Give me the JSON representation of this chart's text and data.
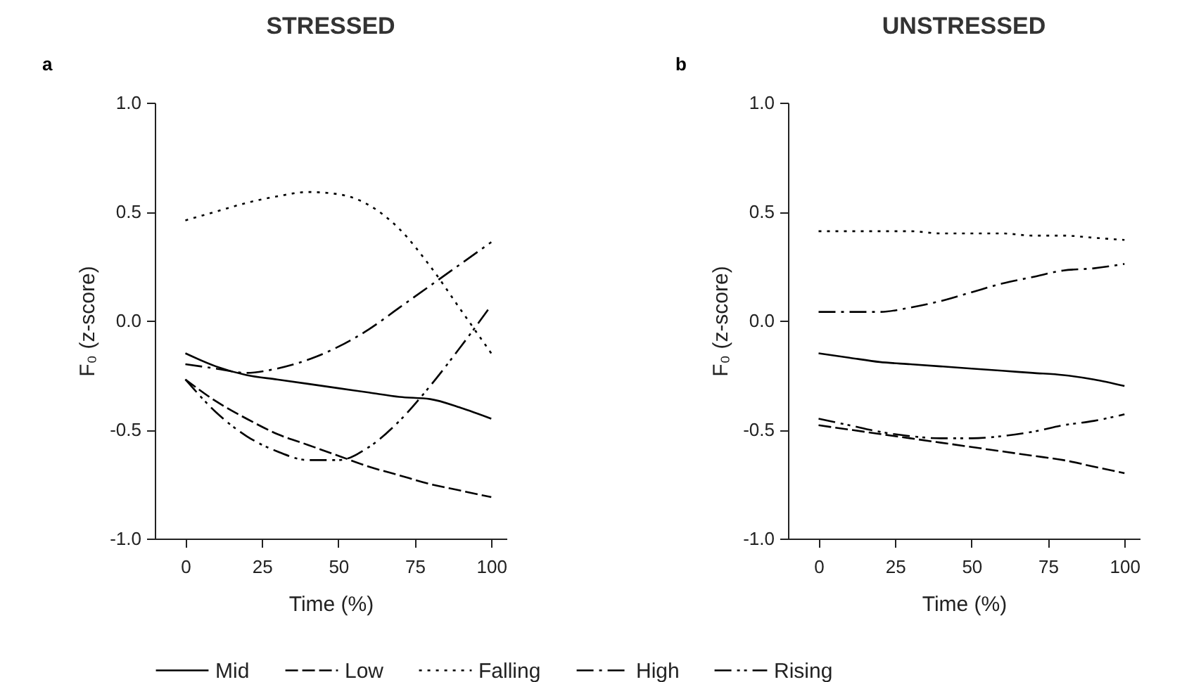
{
  "chart_data": [
    {
      "type": "line",
      "title": "STRESSED",
      "annotations": [
        "a"
      ],
      "xlabel": "Time (%)",
      "ylabel": "F₀ (z-score)",
      "x": [
        0,
        10,
        20,
        30,
        40,
        50,
        60,
        70,
        80,
        90,
        100
      ],
      "xlim": [
        -10,
        105
      ],
      "xticks": [
        0,
        25,
        50,
        75,
        100
      ],
      "ylim": [
        -1,
        1
      ],
      "yticks": [
        {
          "value": -1,
          "label": "-1.0"
        },
        {
          "value": -0.5,
          "label": "-0.5"
        },
        {
          "value": 0,
          "label": "0.0"
        },
        {
          "value": 0.5,
          "label": "0.5"
        },
        {
          "value": 1,
          "label": "1.0"
        }
      ],
      "grid": false,
      "legend": "bottom",
      "series": [
        {
          "name": "Mid",
          "color": "#000000",
          "line_style": "solid",
          "values": [
            -0.15,
            -0.21,
            -0.25,
            -0.27,
            -0.29,
            -0.31,
            -0.33,
            -0.35,
            -0.36,
            -0.4,
            -0.45
          ]
        },
        {
          "name": "Low",
          "color": "#000000",
          "line_style": "dashed",
          "values": [
            -0.27,
            -0.37,
            -0.45,
            -0.52,
            -0.57,
            -0.62,
            -0.67,
            -0.71,
            -0.75,
            -0.78,
            -0.81
          ]
        },
        {
          "name": "Falling",
          "color": "#000000",
          "line_style": "dotted",
          "values": [
            0.46,
            0.5,
            0.54,
            0.57,
            0.59,
            0.58,
            0.53,
            0.42,
            0.25,
            0.05,
            -0.15
          ]
        },
        {
          "name": "High",
          "color": "#000000",
          "line_style": "dashdot",
          "values": [
            -0.2,
            -0.22,
            -0.24,
            -0.22,
            -0.18,
            -0.12,
            -0.04,
            0.06,
            0.16,
            0.26,
            0.36
          ]
        },
        {
          "name": "Rising",
          "color": "#000000",
          "line_style": "dashdotdot",
          "values": [
            -0.27,
            -0.42,
            -0.53,
            -0.6,
            -0.64,
            -0.64,
            -0.58,
            -0.46,
            -0.3,
            -0.12,
            0.07
          ]
        }
      ]
    },
    {
      "type": "line",
      "title": "UNSTRESSED",
      "annotations": [
        "b"
      ],
      "xlabel": "Time (%)",
      "ylabel": "F₀ (z-score)",
      "x": [
        0,
        10,
        20,
        30,
        40,
        50,
        60,
        70,
        80,
        90,
        100
      ],
      "xlim": [
        -10,
        105
      ],
      "xticks": [
        0,
        25,
        50,
        75,
        100
      ],
      "ylim": [
        -1,
        1
      ],
      "yticks": [
        {
          "value": -1,
          "label": "-1.0"
        },
        {
          "value": -0.5,
          "label": "-0.5"
        },
        {
          "value": 0,
          "label": "0.0"
        },
        {
          "value": 0.5,
          "label": "0.5"
        },
        {
          "value": 1,
          "label": "1.0"
        }
      ],
      "grid": false,
      "legend": "bottom",
      "series": [
        {
          "name": "Mid",
          "color": "#000000",
          "line_style": "solid",
          "values": [
            -0.15,
            -0.17,
            -0.19,
            -0.2,
            -0.21,
            -0.22,
            -0.23,
            -0.24,
            -0.25,
            -0.27,
            -0.3
          ]
        },
        {
          "name": "Low",
          "color": "#000000",
          "line_style": "dashed",
          "values": [
            -0.48,
            -0.5,
            -0.52,
            -0.54,
            -0.56,
            -0.58,
            -0.6,
            -0.62,
            -0.64,
            -0.67,
            -0.7
          ]
        },
        {
          "name": "Falling",
          "color": "#000000",
          "line_style": "dotted",
          "values": [
            0.41,
            0.41,
            0.41,
            0.41,
            0.4,
            0.4,
            0.4,
            0.39,
            0.39,
            0.38,
            0.37
          ]
        },
        {
          "name": "High",
          "color": "#000000",
          "line_style": "dashdot",
          "values": [
            0.04,
            0.04,
            0.04,
            0.06,
            0.09,
            0.13,
            0.17,
            0.2,
            0.23,
            0.24,
            0.26
          ]
        },
        {
          "name": "Rising",
          "color": "#000000",
          "line_style": "dashdotdot",
          "values": [
            -0.45,
            -0.48,
            -0.51,
            -0.53,
            -0.54,
            -0.54,
            -0.53,
            -0.51,
            -0.48,
            -0.46,
            -0.43
          ]
        }
      ]
    }
  ]
}
